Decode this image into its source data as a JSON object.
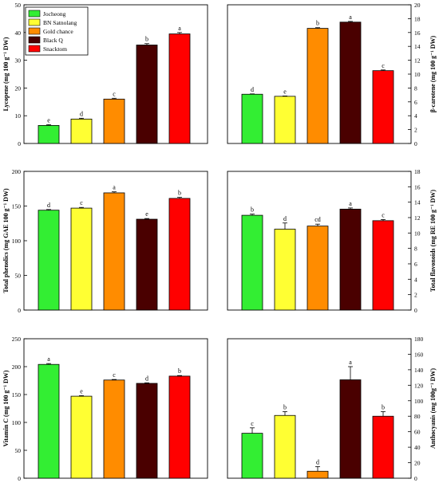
{
  "legend": {
    "entries": [
      {
        "name": "Jocheong",
        "color": "#33ee33"
      },
      {
        "name": "BN Satnolang",
        "color": "#ffff33"
      },
      {
        "name": "Gold chance",
        "color": "#ff8c00"
      },
      {
        "name": "Black Q",
        "color": "#4a0000"
      },
      {
        "name": "Snacktom",
        "color": "#ff0000"
      }
    ],
    "placement": "top-left of first panel"
  },
  "chart_data": [
    {
      "type": "bar",
      "categories": [
        "Jocheong",
        "BN Satnolang",
        "Gold chance",
        "Black Q",
        "Snacktom"
      ],
      "values": [
        6.5,
        8.8,
        16.0,
        35.5,
        39.5
      ],
      "errors": [
        0.3,
        0.3,
        0.3,
        0.5,
        0.5
      ],
      "letters": [
        "e",
        "d",
        "c",
        "b",
        "a"
      ],
      "ylabel": "Lycopene (mg 100 g⁻¹ DW)",
      "ylim": [
        0,
        50
      ],
      "yticks": [
        "0",
        "10",
        "20",
        "30",
        "40",
        "50"
      ],
      "axis_side": "left"
    },
    {
      "type": "bar",
      "categories": [
        "Jocheong",
        "BN Satnolang",
        "Gold chance",
        "Black Q",
        "Snacktom"
      ],
      "values": [
        7.1,
        6.8,
        16.6,
        17.5,
        10.5
      ],
      "errors": [
        0.05,
        0.05,
        0.1,
        0.1,
        0.1
      ],
      "letters": [
        "d",
        "e",
        "b",
        "a",
        "c"
      ],
      "ylabel": "β-carotene (mg 100 g⁻¹ DW)",
      "ylim": [
        0,
        20
      ],
      "yticks": [
        "0",
        "2",
        "4",
        "6",
        "8",
        "10",
        "12",
        "14",
        "16",
        "18",
        "20"
      ],
      "axis_side": "right"
    },
    {
      "type": "bar",
      "categories": [
        "Jocheong",
        "BN Satnolang",
        "Gold chance",
        "Black Q",
        "Snacktom"
      ],
      "values": [
        144,
        147,
        169,
        131,
        161
      ],
      "errors": [
        1,
        1,
        1.5,
        1,
        1.5
      ],
      "letters": [
        "d",
        "c",
        "a",
        "e",
        "b"
      ],
      "ylabel": "Total phenolics (mg GAE 100 g⁻¹ DW)",
      "ylim": [
        0,
        200
      ],
      "yticks": [
        "0",
        "50",
        "100",
        "150",
        "200"
      ],
      "axis_side": "left"
    },
    {
      "type": "bar",
      "categories": [
        "Jocheong",
        "BN Satnolang",
        "Gold chance",
        "Black Q",
        "Snacktom"
      ],
      "values": [
        12.3,
        10.5,
        10.9,
        13.1,
        11.6
      ],
      "errors": [
        0.15,
        0.8,
        0.25,
        0.15,
        0.15
      ],
      "letters": [
        "b",
        "d",
        "cd",
        "a",
        "c"
      ],
      "ylabel": "Total flavonoids (mg RE 100 g⁻¹ DW)",
      "ylim": [
        0,
        18
      ],
      "yticks": [
        "0",
        "2",
        "4",
        "6",
        "8",
        "10",
        "12",
        "14",
        "16",
        "18"
      ],
      "axis_side": "right"
    },
    {
      "type": "bar",
      "categories": [
        "Jocheong",
        "BN Satnolang",
        "Gold chance",
        "Black Q",
        "Snacktom"
      ],
      "values": [
        204,
        147,
        176,
        170,
        183
      ],
      "errors": [
        1.5,
        1,
        1,
        1,
        1
      ],
      "letters": [
        "a",
        "e",
        "c",
        "d",
        "b"
      ],
      "ylabel": "Vitamin C (mg 100 g⁻¹ DW)",
      "ylim": [
        0,
        250
      ],
      "yticks": [
        "0",
        "50",
        "100",
        "150",
        "200",
        "250"
      ],
      "axis_side": "left"
    },
    {
      "type": "bar",
      "categories": [
        "Jocheong",
        "BN Satnolang",
        "Gold chance",
        "Black Q",
        "Snacktom"
      ],
      "values": [
        58,
        81,
        9,
        127,
        80
      ],
      "errors": [
        7,
        5,
        6,
        17,
        6
      ],
      "letters": [
        "c",
        "b",
        "d",
        "a",
        "b"
      ],
      "ylabel": "Anthocyanis (mg 100g⁻¹ DW)",
      "ylim": [
        0,
        180
      ],
      "yticks": [
        "0",
        "20",
        "40",
        "60",
        "80",
        "100",
        "120",
        "140",
        "160",
        "180"
      ],
      "axis_side": "right"
    }
  ]
}
